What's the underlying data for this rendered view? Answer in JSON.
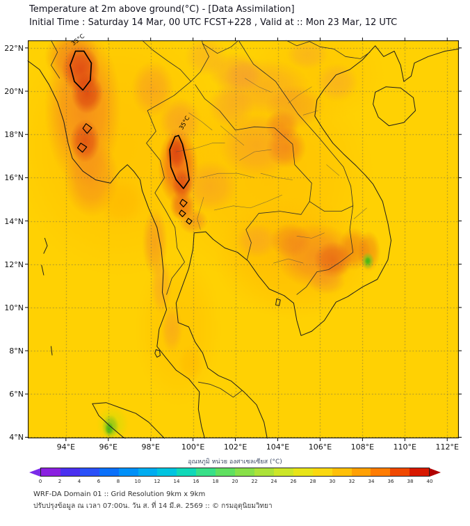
{
  "header": {
    "title": "Temperature at 2m above ground(°C) - [Data Assimilation]",
    "subtitle": "Initial Time : Saturday 14 Mar, 00 UTC FCST+228 , Valid at :: Mon 23 Mar, 12 UTC"
  },
  "map": {
    "lon_min": 92.2,
    "lon_max": 112.55,
    "lat_min": 3.95,
    "lat_max": 22.35,
    "lon_labels": [
      "94°E",
      "96°E",
      "98°E",
      "100°E",
      "102°E",
      "104°E",
      "106°E",
      "108°E",
      "110°E",
      "112°E"
    ],
    "lat_labels": [
      "22°N",
      "20°N",
      "18°N",
      "16°N",
      "14°N",
      "12°N",
      "10°N",
      "8°N",
      "6°N",
      "4°N"
    ],
    "contour_label": "35°C",
    "contour_value": 35,
    "field": {
      "base_color": "#FFD103",
      "blobs": [
        [
          96.5,
          17.5,
          5.0,
          6.0,
          "#FFBB00",
          0.55
        ],
        [
          103.5,
          16.0,
          5.0,
          5.0,
          "#FFB800",
          0.5
        ],
        [
          104.8,
          12.3,
          3.8,
          2.8,
          "#FFB200",
          0.5
        ],
        [
          99.3,
          9.0,
          2.0,
          3.5,
          "#FFBB00",
          0.45
        ],
        [
          105.8,
          20.8,
          3.2,
          2.2,
          "#FFBE00",
          0.4
        ],
        [
          94.8,
          19.2,
          1.8,
          3.6,
          "#F4831F",
          0.8
        ],
        [
          94.3,
          21.6,
          1.3,
          1.2,
          "#F0791C",
          0.7
        ],
        [
          95.2,
          16.0,
          1.3,
          1.8,
          "#F4871F",
          0.65
        ],
        [
          94.7,
          21.0,
          0.9,
          1.1,
          "#DC3D12",
          0.75
        ],
        [
          95.0,
          19.9,
          0.75,
          0.95,
          "#D83A10",
          0.75
        ],
        [
          94.9,
          17.7,
          0.7,
          1.0,
          "#DC4012",
          0.7
        ],
        [
          98.1,
          20.1,
          1.0,
          1.3,
          "#F5922A",
          0.55
        ],
        [
          96.6,
          14.9,
          1.1,
          1.1,
          "#FFB300",
          0.5
        ],
        [
          98.2,
          13.0,
          0.6,
          1.6,
          "#F28A25",
          0.6
        ],
        [
          98.5,
          11.0,
          0.5,
          1.3,
          "#F5992E",
          0.5
        ],
        [
          99.4,
          18.6,
          1.0,
          1.1,
          "#F5952C",
          0.6
        ],
        [
          99.3,
          16.5,
          0.95,
          1.8,
          "#EE6318",
          0.85
        ],
        [
          99.2,
          17.2,
          0.5,
          0.8,
          "#D83A10",
          0.8
        ],
        [
          99.5,
          15.7,
          0.5,
          0.7,
          "#DC4513",
          0.75
        ],
        [
          99.5,
          14.7,
          0.6,
          0.7,
          "#E85C18",
          0.7
        ],
        [
          100.0,
          14.0,
          0.7,
          0.6,
          "#F08020",
          0.55
        ],
        [
          100.8,
          15.6,
          1.3,
          1.2,
          "#F5952C",
          0.5
        ],
        [
          103.0,
          17.5,
          1.8,
          1.5,
          "#F5952C",
          0.55
        ],
        [
          104.4,
          17.4,
          0.95,
          0.95,
          "#EE7020",
          0.6
        ],
        [
          104.2,
          18.4,
          0.8,
          0.75,
          "#EE7020",
          0.55
        ],
        [
          103.3,
          20.2,
          2.2,
          1.3,
          "#F69A2E",
          0.5
        ],
        [
          104.8,
          19.3,
          1.4,
          1.0,
          "#F29028",
          0.5
        ],
        [
          101.8,
          19.3,
          1.1,
          1.0,
          "#F59A30",
          0.5
        ],
        [
          102.4,
          20.7,
          0.9,
          0.8,
          "#F5A030",
          0.5
        ],
        [
          102.0,
          20.9,
          1.3,
          0.9,
          "#F59C30",
          0.5
        ],
        [
          100.6,
          21.6,
          1.0,
          0.9,
          "#F5A030",
          0.45
        ],
        [
          105.4,
          21.7,
          1.0,
          0.7,
          "#F5A133",
          0.45
        ],
        [
          106.8,
          20.4,
          1.0,
          0.9,
          "#F5A133",
          0.5
        ],
        [
          105.8,
          12.4,
          1.9,
          1.5,
          "#F28222",
          0.7
        ],
        [
          106.6,
          12.2,
          0.9,
          0.85,
          "#E25317",
          0.6
        ],
        [
          107.6,
          12.7,
          0.75,
          1.0,
          "#E86018",
          0.5
        ],
        [
          104.6,
          13.1,
          1.0,
          0.8,
          "#EE7920",
          0.55
        ],
        [
          103.0,
          13.1,
          1.0,
          0.8,
          "#F59A30",
          0.5
        ],
        [
          108.3,
          12.6,
          0.55,
          0.95,
          "#E86018",
          0.45
        ],
        [
          106.3,
          11.2,
          0.9,
          0.6,
          "#F08828",
          0.45
        ],
        [
          99.0,
          9.0,
          0.5,
          1.1,
          "#F59828",
          0.5
        ],
        [
          99.9,
          7.4,
          0.6,
          0.9,
          "#FFB600",
          0.5
        ],
        [
          108.25,
          12.15,
          0.3,
          0.4,
          "#7FC41C",
          0.9
        ],
        [
          108.25,
          12.15,
          0.15,
          0.2,
          "#3FB515",
          0.9
        ],
        [
          96.2,
          4.6,
          0.75,
          0.85,
          "#D8DC06",
          0.7
        ],
        [
          96.1,
          4.5,
          0.4,
          0.55,
          "#7FC41C",
          0.8
        ],
        [
          96.05,
          4.4,
          0.2,
          0.3,
          "#3FB515",
          0.85
        ]
      ]
    }
  },
  "colorbar": {
    "label": "อุณหภูมิ หน่วย องศาเซลเซียส (°C)",
    "ticks": [
      0,
      2,
      4,
      6,
      8,
      10,
      12,
      14,
      16,
      18,
      20,
      22,
      24,
      26,
      28,
      30,
      32,
      34,
      36,
      38,
      40
    ],
    "under_color": "#7A2BE8",
    "over_color": "#B00000",
    "segment_colors": [
      "#8A20E0",
      "#4A30F0",
      "#2A50F8",
      "#0A70FA",
      "#0090F8",
      "#00ACF0",
      "#00C4E0",
      "#10D8B8",
      "#38E088",
      "#60E060",
      "#88E048",
      "#ACE238",
      "#CCE628",
      "#E8E418",
      "#FAD810",
      "#FFC008",
      "#FFA004",
      "#FF7C02",
      "#F04800",
      "#D81800"
    ]
  },
  "footer": {
    "line1": "WRF-DA Domain 01 :: Grid Resolution 9km x 9km",
    "line2": "ปรับปรุงข้อมูล ณ เวลา 07:00น. วัน ส. ที่ 14 มี.ค. 2569 :: © กรมอุตุนิยมวิทยา"
  }
}
